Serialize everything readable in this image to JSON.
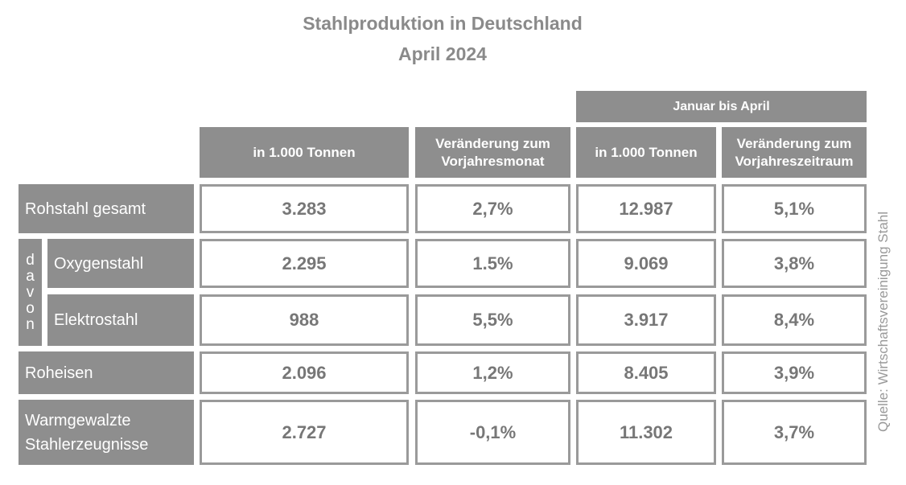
{
  "title": "Stahlproduktion in Deutschland",
  "subtitle": "April 2024",
  "group_header": "Januar bis April",
  "columns": [
    "in 1.000 Tonnen",
    "Veränderung zum Vorjahresmonat",
    "in 1.000 Tonnen",
    "Veränderung zum Vorjahreszeitraum"
  ],
  "davon_label": "davon",
  "rows": [
    {
      "label": "Rohstahl gesamt",
      "values": [
        "3.283",
        "2,7%",
        "12.987",
        "5,1%"
      ]
    },
    {
      "label": "Oxygenstahl",
      "values": [
        "2.295",
        "1.5%",
        "9.069",
        "3,8%"
      ]
    },
    {
      "label": "Elektrostahl",
      "values": [
        "988",
        "5,5%",
        "3.917",
        "8,4%"
      ]
    },
    {
      "label": "Roheisen",
      "values": [
        "2.096",
        "1,2%",
        "8.405",
        "3,9%"
      ]
    },
    {
      "label": "Warmgewalzte Stahlerzeugnisse",
      "values": [
        "2.727",
        "-0,1%",
        "11.302",
        "3,7%"
      ]
    }
  ],
  "source": "Quelle: Wirtschaftsvereinigung Stahl"
}
